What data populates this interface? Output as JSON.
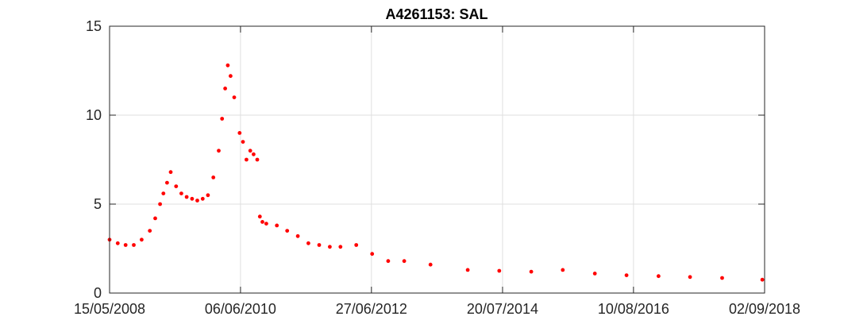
{
  "chart_data": {
    "type": "scatter",
    "title": "A4261153: SAL",
    "xlabel": "",
    "ylabel": "",
    "x_type": "date",
    "xlim": [
      "2008-05-15",
      "2018-09-02"
    ],
    "ylim": [
      0,
      15
    ],
    "x_ticks": [
      "2008-05-15",
      "2010-06-06",
      "2012-06-27",
      "2014-07-20",
      "2016-08-10",
      "2018-09-02"
    ],
    "x_tick_labels": [
      "15/05/2008",
      "06/06/2010",
      "27/06/2012",
      "20/07/2014",
      "10/08/2016",
      "02/09/2018"
    ],
    "y_ticks": [
      0,
      5,
      10,
      15
    ],
    "y_tick_labels": [
      "0",
      "5",
      "10",
      "15"
    ],
    "grid": true,
    "legend": "none",
    "marker_color": "#ff0000",
    "series": [
      {
        "x": [
          "2008-05-15",
          "2008-07-01",
          "2008-08-15",
          "2008-10-01",
          "2008-11-15",
          "2009-01-01",
          "2009-02-01",
          "2009-03-01",
          "2009-03-20",
          "2009-04-10",
          "2009-05-01",
          "2009-06-01",
          "2009-07-01",
          "2009-08-01",
          "2009-09-01",
          "2009-10-01",
          "2009-11-01",
          "2009-12-01",
          "2010-01-01",
          "2010-02-01",
          "2010-02-20",
          "2010-03-10",
          "2010-03-25",
          "2010-04-10",
          "2010-05-01",
          "2010-06-01",
          "2010-06-20",
          "2010-07-10",
          "2010-08-01",
          "2010-08-20",
          "2010-09-10",
          "2010-09-25",
          "2010-10-10",
          "2010-11-01",
          "2011-01-01",
          "2011-03-01",
          "2011-05-01",
          "2011-07-01",
          "2011-09-01",
          "2011-11-01",
          "2012-01-01",
          "2012-04-01",
          "2012-07-01",
          "2012-10-01",
          "2013-01-01",
          "2013-06-01",
          "2014-01-01",
          "2014-07-01",
          "2015-01-01",
          "2015-07-01",
          "2016-01-01",
          "2016-07-01",
          "2017-01-01",
          "2017-07-01",
          "2018-01-01",
          "2018-08-20"
        ],
        "y": [
          3.0,
          2.8,
          2.7,
          2.7,
          3.0,
          3.5,
          4.2,
          5.0,
          5.6,
          6.2,
          6.8,
          6.0,
          5.6,
          5.4,
          5.3,
          5.2,
          5.3,
          5.5,
          6.5,
          8.0,
          9.8,
          11.5,
          12.8,
          12.2,
          11.0,
          9.0,
          8.5,
          7.5,
          8.0,
          7.8,
          7.5,
          4.3,
          4.0,
          3.9,
          3.8,
          3.5,
          3.2,
          2.8,
          2.7,
          2.6,
          2.6,
          2.7,
          2.2,
          1.8,
          1.8,
          1.6,
          1.3,
          1.25,
          1.2,
          1.3,
          1.1,
          1.0,
          0.95,
          0.9,
          0.85,
          0.75
        ]
      }
    ]
  }
}
